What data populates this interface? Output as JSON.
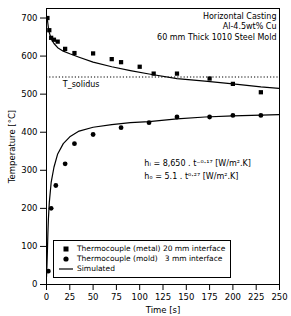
{
  "chart_data": {
    "type": "line",
    "title": "Horizontal Casting\nAl-4.5wt% Cu\n60 mm Thick 1010 Steel Mold",
    "xlabel": "Time [s]",
    "ylabel": "Temperature [°C]",
    "xlim": [
      0,
      250
    ],
    "ylim": [
      0,
      725
    ],
    "xticks": [
      0,
      25,
      50,
      75,
      100,
      125,
      150,
      175,
      200,
      225,
      250
    ],
    "yticks": [
      0,
      100,
      200,
      300,
      400,
      500,
      600,
      700
    ],
    "grid": false,
    "legend": "lower left",
    "series": [
      {
        "name": "Thermocouple (metal) 20 mm interface",
        "type": "scatter",
        "marker": "square",
        "color": "#000000",
        "x": [
          1,
          3,
          5,
          8,
          12,
          20,
          30,
          50,
          70,
          80,
          100,
          115,
          140,
          175,
          200,
          230
        ],
        "values": [
          700,
          668,
          648,
          643,
          638,
          619,
          608,
          607,
          592,
          584,
          572,
          554,
          554,
          541,
          527,
          505
        ]
      },
      {
        "name": "Thermocouple (mold)   3 mm interface",
        "type": "scatter",
        "marker": "circle",
        "color": "#000000",
        "x": [
          2,
          5,
          10,
          20,
          30,
          50,
          80,
          110,
          140,
          175,
          200,
          230
        ],
        "values": [
          35,
          200,
          260,
          317,
          370,
          394,
          412,
          425,
          440,
          440,
          444,
          444
        ]
      },
      {
        "name": "Simulated",
        "type": "line",
        "color": "#000000",
        "x": [
          0,
          0.5,
          1,
          1.5,
          2,
          3,
          5,
          8,
          12,
          18,
          25,
          35,
          50,
          70,
          90,
          110,
          140,
          170,
          200,
          230,
          250
        ],
        "values": [
          705,
          703,
          695,
          685,
          675,
          662,
          645,
          633,
          622,
          613,
          606,
          597,
          584,
          572,
          562,
          553,
          541,
          534,
          527,
          519,
          515
        ]
      },
      {
        "name": "Simulated",
        "type": "line",
        "color": "#000000",
        "x": [
          0,
          0.5,
          1,
          1.5,
          2,
          3,
          5,
          8,
          12,
          18,
          25,
          35,
          50,
          70,
          90,
          110,
          140,
          170,
          200,
          230,
          250
        ],
        "values": [
          20,
          50,
          90,
          135,
          170,
          215,
          268,
          308,
          343,
          370,
          388,
          403,
          413,
          420,
          425,
          428,
          435,
          440,
          443,
          445,
          446
        ]
      }
    ],
    "reference_lines": [
      {
        "y": 545,
        "label": "T_solidus",
        "line_style": "dotted"
      }
    ],
    "annotations": [
      "hᵢ = 8,650 . t⁻⁰·¹⁷ [W/m².K]",
      "hₒ = 5.1 . t⁰·²⁷ [W/m².K]"
    ]
  }
}
